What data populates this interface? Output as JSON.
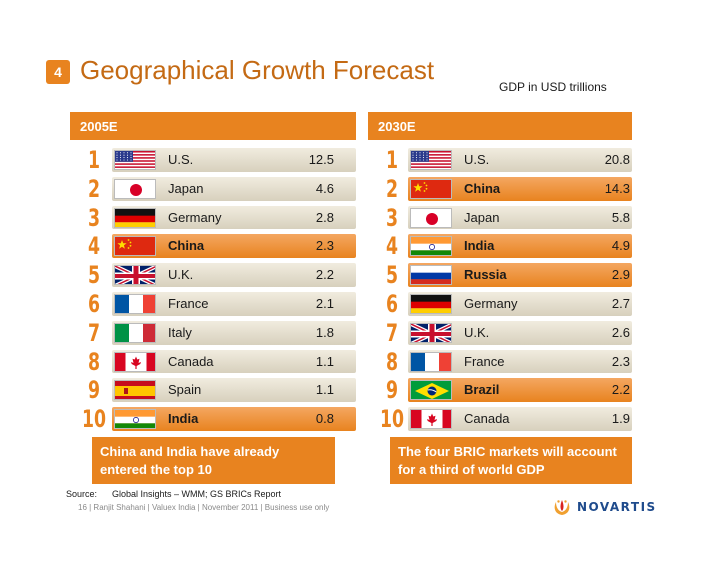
{
  "header": {
    "slide_number": "4",
    "title": "Geographical Growth Forecast",
    "unit_note": "GDP in USD trillions"
  },
  "left_panel": {
    "heading": "2005E",
    "rows": [
      {
        "rank": "1",
        "country": "U.S.",
        "value": "12.5",
        "flag": "us-flag-icon",
        "highlight": false
      },
      {
        "rank": "2",
        "country": "Japan",
        "value": "4.6",
        "flag": "japan-flag-icon",
        "highlight": false
      },
      {
        "rank": "3",
        "country": "Germany",
        "value": "2.8",
        "flag": "germany-flag-icon",
        "highlight": false
      },
      {
        "rank": "4",
        "country": "China",
        "value": "2.3",
        "flag": "china-flag-icon",
        "highlight": true
      },
      {
        "rank": "5",
        "country": "U.K.",
        "value": "2.2",
        "flag": "uk-flag-icon",
        "highlight": false
      },
      {
        "rank": "6",
        "country": "France",
        "value": "2.1",
        "flag": "france-flag-icon",
        "highlight": false
      },
      {
        "rank": "7",
        "country": "Italy",
        "value": "1.8",
        "flag": "italy-flag-icon",
        "highlight": false
      },
      {
        "rank": "8",
        "country": "Canada",
        "value": "1.1",
        "flag": "canada-flag-icon",
        "highlight": false
      },
      {
        "rank": "9",
        "country": "Spain",
        "value": "1.1",
        "flag": "spain-flag-icon",
        "highlight": false
      },
      {
        "rank": "10",
        "country": "India",
        "value": "0.8",
        "flag": "india-flag-icon",
        "highlight": true
      }
    ],
    "callout": "China and India have already entered the top 10"
  },
  "right_panel": {
    "heading": "2030E",
    "rows": [
      {
        "rank": "1",
        "country": "U.S.",
        "value": "20.8",
        "flag": "us-flag-icon",
        "highlight": false
      },
      {
        "rank": "2",
        "country": "China",
        "value": "14.3",
        "flag": "china-flag-icon",
        "highlight": true
      },
      {
        "rank": "3",
        "country": "Japan",
        "value": "5.8",
        "flag": "japan-flag-icon",
        "highlight": false
      },
      {
        "rank": "4",
        "country": "India",
        "value": "4.9",
        "flag": "india-flag-icon",
        "highlight": true
      },
      {
        "rank": "5",
        "country": "Russia",
        "value": "2.9",
        "flag": "russia-flag-icon",
        "highlight": true
      },
      {
        "rank": "6",
        "country": "Germany",
        "value": "2.7",
        "flag": "germany-flag-icon",
        "highlight": false
      },
      {
        "rank": "7",
        "country": "U.K.",
        "value": "2.6",
        "flag": "uk-flag-icon",
        "highlight": false
      },
      {
        "rank": "8",
        "country": "France",
        "value": "2.3",
        "flag": "france-flag-icon",
        "highlight": false
      },
      {
        "rank": "9",
        "country": "Brazil",
        "value": "2.2",
        "flag": "brazil-flag-icon",
        "highlight": true
      },
      {
        "rank": "10",
        "country": "Canada",
        "value": "1.9",
        "flag": "canada-flag-icon",
        "highlight": false
      }
    ],
    "callout": "The four BRIC markets will account for a third of world GDP"
  },
  "source": {
    "label": "Source:",
    "text": "Global Insights – WMM; GS BRICs Report"
  },
  "footer": "16 | Ranjit Shahani | Valuex India | November 2011 | Business use only",
  "logo": {
    "icon": "novartis-logo-icon",
    "text": "NOVARTIS",
    "color": "#1f4b8c"
  },
  "colors": {
    "accent": "#e8831f",
    "title": "#c46a14",
    "row": "#e3ddcc"
  }
}
